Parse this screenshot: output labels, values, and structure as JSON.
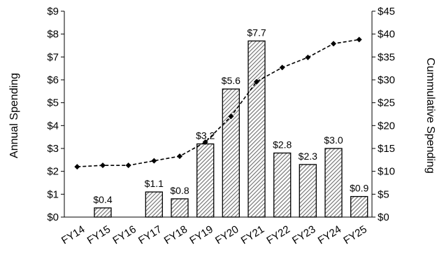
{
  "chart_data": {
    "type": "bar",
    "categories": [
      "FY14",
      "FY15",
      "FY16",
      "FY17",
      "FY18",
      "FY19",
      "FY20",
      "FY21",
      "FY22",
      "FY23",
      "FY24",
      "FY25"
    ],
    "ylabel": "Annual Spending",
    "y2label": "Cummulative Spending",
    "ylim": [
      0,
      9
    ],
    "y2lim": [
      0,
      45
    ],
    "yticks": [
      "$0",
      "$1",
      "$2",
      "$3",
      "$4",
      "$5",
      "$6",
      "$7",
      "$8",
      "$9"
    ],
    "y2ticks": [
      "$0",
      "$5",
      "$10",
      "$15",
      "$20",
      "$25",
      "$30",
      "$35",
      "$40",
      "$45"
    ],
    "grid": false,
    "series": [
      {
        "type": "bar",
        "axis": "left",
        "values": [
          0,
          0.4,
          0,
          1.1,
          0.8,
          3.2,
          5.6,
          7.7,
          2.8,
          2.3,
          3.0,
          0.9
        ],
        "data_labels": [
          "",
          "$0.4",
          "",
          "$1.1",
          "$0.8",
          "$3.2",
          "$5.6",
          "$7.7",
          "$2.8",
          "$2.3",
          "$3.0",
          "$0.9"
        ]
      },
      {
        "type": "line",
        "axis": "right",
        "values": [
          11.0,
          11.3,
          11.3,
          12.3,
          13.3,
          16.4,
          22.0,
          29.6,
          32.7,
          34.9,
          37.9,
          38.8
        ]
      }
    ]
  }
}
